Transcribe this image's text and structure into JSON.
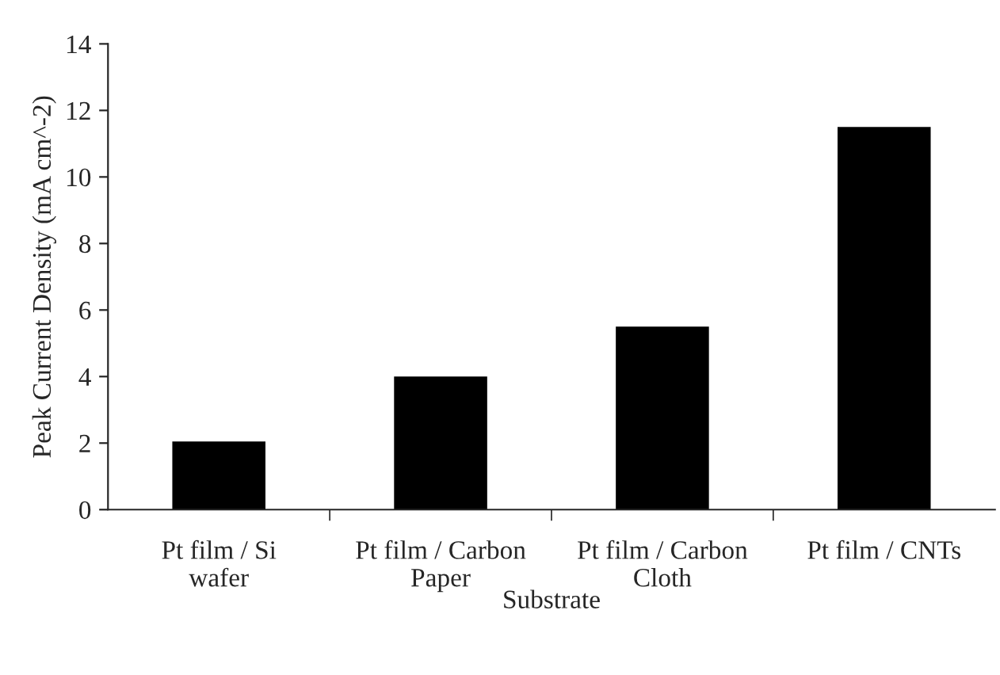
{
  "chart_data": {
    "type": "bar",
    "categories": [
      "Pt film / Si\nwafer",
      "Pt film / Carbon\nPaper",
      "Pt film / Carbon\nCloth",
      "Pt film / CNTs"
    ],
    "values": [
      2.05,
      4.0,
      5.5,
      11.5
    ],
    "color": "#000000",
    "xlabel": "Substrate",
    "ylabel": "Peak Current Density (mA cm^-2)",
    "ylim": [
      0,
      14
    ],
    "yticks": [
      0,
      2,
      4,
      6,
      8,
      10,
      12,
      14
    ],
    "grid": false,
    "legend": false
  }
}
